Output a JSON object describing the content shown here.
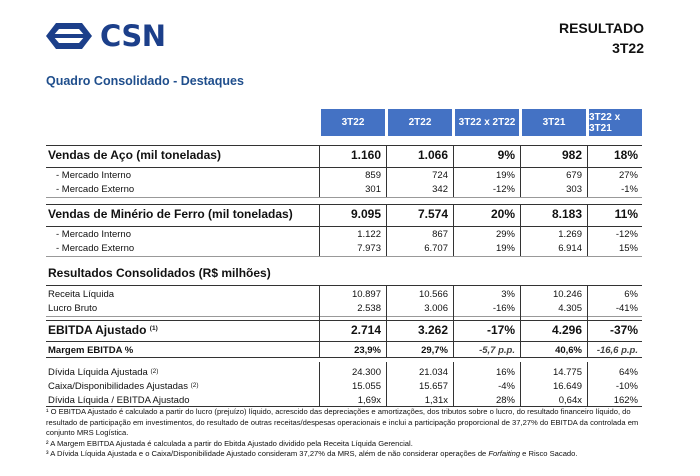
{
  "logo": {
    "text": "CSN"
  },
  "report": {
    "line1": "RESULTADO",
    "line2": "3T22"
  },
  "subtitle": "Quadro Consolidado - Destaques",
  "columns": [
    "3T22",
    "2T22",
    "3T22 x 2T22",
    "3T21",
    "3T22 x 3T21"
  ],
  "rows": [
    {
      "id": "vendas-aco",
      "label": "Vendas de Aço (mil toneladas)",
      "cells": [
        "1.160",
        "1.066",
        "9%",
        "982",
        "18%"
      ]
    },
    {
      "id": "aco-interno",
      "label": "- Mercado Interno",
      "cells": [
        "859",
        "724",
        "19%",
        "679",
        "27%"
      ]
    },
    {
      "id": "aco-externo",
      "label": "- Mercado Externo",
      "cells": [
        "301",
        "342",
        "-12%",
        "303",
        "-1%"
      ]
    },
    {
      "id": "vendas-minerio",
      "label": "Vendas de Minério de Ferro (mil toneladas)",
      "cells": [
        "9.095",
        "7.574",
        "20%",
        "8.183",
        "11%"
      ]
    },
    {
      "id": "minerio-interno",
      "label": "- Mercado Interno",
      "cells": [
        "1.122",
        "867",
        "29%",
        "1.269",
        "-12%"
      ]
    },
    {
      "id": "minerio-externo",
      "label": "- Mercado Externo",
      "cells": [
        "7.973",
        "6.707",
        "19%",
        "6.914",
        "15%"
      ]
    },
    {
      "id": "resultados",
      "label": "Resultados Consolidados (R$ milhões)",
      "cells": [
        "",
        "",
        "",
        "",
        ""
      ]
    },
    {
      "id": "receita",
      "label": "Receita Líquida",
      "cells": [
        "10.897",
        "10.566",
        "3%",
        "10.246",
        "6%"
      ]
    },
    {
      "id": "lucro-bruto",
      "label": "Lucro Bruto",
      "cells": [
        "2.538",
        "3.006",
        "-16%",
        "4.305",
        "-41%"
      ]
    },
    {
      "id": "ebitda",
      "label": "EBITDA Ajustado",
      "sup": "(1)",
      "cells": [
        "2.714",
        "3.262",
        "-17%",
        "4.296",
        "-37%"
      ]
    },
    {
      "id": "margem",
      "label": "Margem EBITDA %",
      "cells": [
        "23,9%",
        "29,7%",
        "-5,7 p.p.",
        "40,6%",
        "-16,6 p.p."
      ]
    },
    {
      "id": "divida",
      "label": "Dívida Líquida Ajustada",
      "sup": "(2)",
      "cells": [
        "24.300",
        "21.034",
        "16%",
        "14.775",
        "64%"
      ]
    },
    {
      "id": "caixa",
      "label": "Caixa/Disponibilidades Ajustadas",
      "sup": "(2)",
      "cells": [
        "15.055",
        "15.657",
        "-4%",
        "16.649",
        "-10%"
      ]
    },
    {
      "id": "divida-ebitda",
      "label": "Dívida Líquida / EBITDA Ajustado",
      "cells": [
        "1,69x",
        "1,31x",
        "28%",
        "0,64x",
        "162%"
      ]
    }
  ],
  "notes": {
    "n1": "¹ O EBITDA Ajustado é calculado a partir do lucro (prejuízo) líquido, acrescido das depreciações e amortizações, dos tributos sobre o lucro, do resultado financeiro líquido, do resultado de participação em investimentos, do resultado de outras receitas/despesas operacionais e inclui a participação proporcional de 37,27% do EBITDA da controlada em conjunto MRS Logística.",
    "n2": "² A Margem EBITDA Ajustada é calculada a partir do Ebitda Ajustado dividido pela Receita Líquida Gerencial.",
    "n3a": "³ A Dívida Líquida Ajustada e o Caixa/Disponibilidade Ajustado consideram 37,27% da MRS, além de não considerar operações de ",
    "n3b": "Forfaiting",
    "n3c": " e Risco Sacado."
  },
  "colors": {
    "brand": "#1c3f8a",
    "header_bg": "#4472c4",
    "subtitle": "#1f4e8c"
  }
}
